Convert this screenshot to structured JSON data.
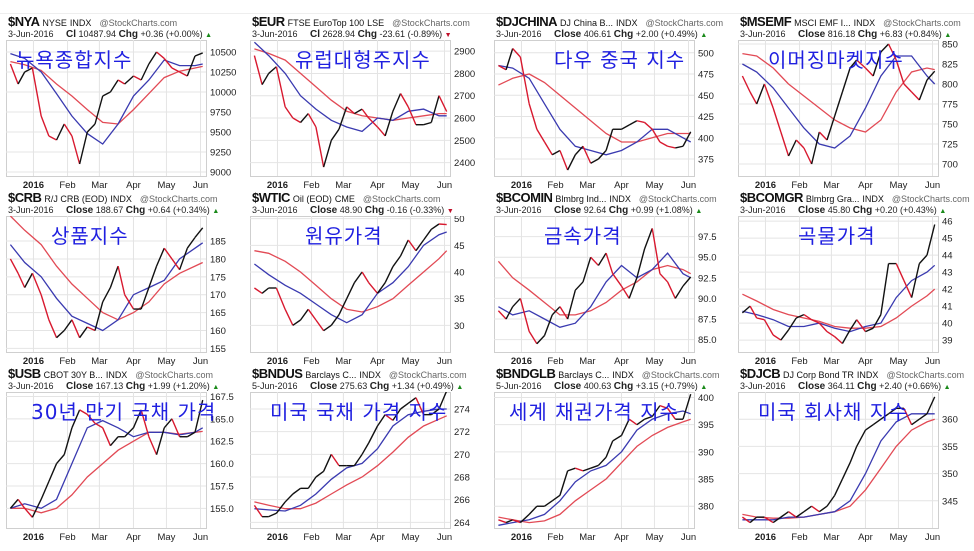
{
  "watermark": "@StockCharts.com",
  "colors": {
    "up": "#111111",
    "down": "#d8192f",
    "ma_short": "#3a3ab0",
    "ma_long": "#e24a55",
    "overlay_text": "#1f1fe0",
    "grid": "#e4e4e4"
  },
  "x_tick_labels": [
    "2016",
    "Feb",
    "Mar",
    "Apr",
    "May",
    "Jun"
  ],
  "chart_data": [
    {
      "type": "line",
      "ticker": "$NYA",
      "name": "NYSE",
      "exchange": "INDX",
      "overlay": "뉴욕종합지수",
      "date": "3-Jun-2016",
      "close_label": "Cl",
      "close": "10487.94",
      "chg_label": "Chg",
      "chg": "+0.36 (+0.00%)",
      "direction": "up",
      "ylim": [
        8950,
        10650
      ],
      "yticks": [
        9000,
        9250,
        9500,
        9750,
        10000,
        10250,
        10500
      ],
      "close_series": [
        10350,
        10100,
        10250,
        10300,
        9700,
        9450,
        9400,
        9600,
        9450,
        9100,
        9500,
        9600,
        9950,
        10000,
        10150,
        10100,
        10200,
        10150,
        10350,
        10500,
        10420,
        10300,
        10250,
        10200,
        10450,
        10488
      ],
      "ma_short": [
        10480,
        10420,
        10250,
        9980,
        9700,
        9480,
        9350,
        9600,
        9950,
        10150,
        10400,
        10330,
        10330,
        10350
      ],
      "ma_long": [
        10380,
        10340,
        10270,
        10100,
        9950,
        9780,
        9620,
        9600,
        9780,
        9980,
        10180,
        10260,
        10300,
        10320
      ]
    },
    {
      "type": "line",
      "ticker": "$EUR",
      "name": "FTSE EuroTop 100",
      "exchange": "LSE",
      "overlay": "유럽대형주지수",
      "date": "3-Jun-2016",
      "close_label": "Cl",
      "close": "2628.94",
      "chg_label": "Chg",
      "chg": "-23.61 (-0.89%)",
      "direction": "down",
      "ylim": [
        2340,
        2950
      ],
      "yticks": [
        2400,
        2500,
        2600,
        2700,
        2800,
        2900
      ],
      "close_series": [
        2880,
        2750,
        2800,
        2830,
        2650,
        2600,
        2580,
        2620,
        2560,
        2380,
        2500,
        2550,
        2650,
        2620,
        2640,
        2600,
        2560,
        2520,
        2630,
        2710,
        2650,
        2570,
        2570,
        2580,
        2700,
        2629
      ],
      "ma_short": [
        2940,
        2880,
        2800,
        2700,
        2640,
        2590,
        2560,
        2540,
        2600,
        2590,
        2630,
        2640,
        2610,
        2610
      ],
      "ma_long": [
        2910,
        2890,
        2860,
        2800,
        2740,
        2680,
        2630,
        2610,
        2600,
        2590,
        2600,
        2610,
        2620,
        2620
      ]
    },
    {
      "type": "line",
      "ticker": "$DJCHINA",
      "name": "DJ China B...",
      "exchange": "INDX",
      "overlay": "다우 중국 지수",
      "date": "3-Jun-2016",
      "close_label": "Close",
      "close": "406.61",
      "chg_label": "Chg",
      "chg": "+2.00 (+0.49%)",
      "direction": "up",
      "ylim": [
        355,
        515
      ],
      "yticks": [
        375,
        400,
        425,
        450,
        475,
        500
      ],
      "close_series": [
        485,
        480,
        505,
        495,
        440,
        410,
        395,
        380,
        385,
        362,
        380,
        390,
        370,
        375,
        385,
        410,
        410,
        415,
        420,
        418,
        410,
        395,
        390,
        388,
        390,
        407
      ],
      "ma_short": [
        485,
        482,
        470,
        440,
        410,
        390,
        385,
        380,
        385,
        395,
        410,
        410,
        400,
        395
      ],
      "ma_long": [
        462,
        470,
        475,
        465,
        450,
        435,
        420,
        405,
        395,
        395,
        400,
        405,
        405,
        405
      ]
    },
    {
      "type": "line",
      "ticker": "$MSEMF",
      "name": "MSCI EMF I...",
      "exchange": "INDX",
      "overlay": "이머징마켓지수",
      "date": "3-Jun-2016",
      "close_label": "Close",
      "close": "816.18",
      "chg_label": "Chg",
      "chg": "+6.83 (+0.84%)",
      "direction": "up",
      "ylim": [
        685,
        855
      ],
      "yticks": [
        700,
        725,
        750,
        775,
        800,
        825,
        850
      ],
      "close_series": [
        810,
        790,
        775,
        800,
        770,
        740,
        710,
        730,
        720,
        700,
        740,
        730,
        760,
        790,
        820,
        830,
        820,
        810,
        840,
        850,
        830,
        800,
        790,
        780,
        805,
        816
      ],
      "ma_short": [
        825,
        815,
        795,
        770,
        745,
        725,
        720,
        735,
        770,
        810,
        835,
        835,
        810,
        800
      ],
      "ma_long": [
        838,
        835,
        820,
        800,
        785,
        770,
        755,
        745,
        740,
        755,
        790,
        815,
        820,
        818
      ]
    },
    {
      "type": "line",
      "ticker": "$CRB",
      "name": "R/J CRB (EOD)",
      "exchange": "INDX",
      "overlay": "상품지수",
      "date": "3-Jun-2016",
      "close_label": "Close",
      "close": "188.67",
      "chg_label": "Chg",
      "chg": "+0.64 (+0.34%)",
      "direction": "up",
      "ylim": [
        154,
        192
      ],
      "yticks": [
        155,
        160,
        165,
        170,
        175,
        180,
        185
      ],
      "close_series": [
        180,
        176,
        172,
        176,
        170,
        163,
        158,
        160,
        163,
        158,
        161,
        160,
        168,
        172,
        178,
        170,
        166,
        166,
        172,
        178,
        183,
        180,
        177,
        183,
        186,
        188.7
      ],
      "ma_short": [
        184,
        179,
        175,
        169,
        164,
        162,
        160,
        163,
        170,
        172,
        174,
        180,
        183,
        184.5
      ],
      "ma_long": [
        192,
        188,
        184,
        178,
        173,
        169,
        165,
        163,
        165,
        168,
        173,
        176,
        178,
        179
      ]
    },
    {
      "type": "line",
      "ticker": "$WTIC",
      "name": "Oil (EOD)",
      "exchange": "CME",
      "overlay": "원유가격",
      "date": "3-Jun-2016",
      "close_label": "Close",
      "close": "48.90",
      "chg_label": "Chg",
      "chg": "-0.16 (-0.33%)",
      "direction": "down",
      "ylim": [
        25,
        50.5
      ],
      "yticks": [
        30,
        35,
        40,
        45,
        50
      ],
      "close_series": [
        37,
        36,
        37,
        37,
        33,
        30,
        31,
        33,
        31,
        29,
        30,
        32,
        35,
        38,
        40,
        38,
        36,
        38,
        41,
        43,
        46,
        44,
        46,
        48,
        49,
        48.9
      ],
      "ma_short": [
        41.5,
        39.5,
        37.5,
        36,
        34,
        32,
        30.5,
        32,
        36,
        38,
        41,
        45,
        47,
        47.5
      ],
      "ma_long": [
        44,
        43.5,
        42,
        40,
        37.5,
        35,
        33,
        32.5,
        33.5,
        35,
        37.5,
        40,
        42.5,
        44
      ]
    },
    {
      "type": "line",
      "ticker": "$BCOMIN",
      "name": "Blmbrg Ind...",
      "exchange": "INDX",
      "overlay": "금속가격",
      "date": "3-Jun-2016",
      "close_label": "Close",
      "close": "92.64",
      "chg_label": "Chg",
      "chg": "+0.99 (+1.08%)",
      "direction": "up",
      "ylim": [
        83.5,
        100
      ],
      "yticks": [
        85.0,
        87.5,
        90.0,
        92.5,
        95.0,
        97.5
      ],
      "close_series": [
        88.5,
        87.5,
        89,
        90,
        86,
        84.5,
        85.5,
        88,
        89,
        87.5,
        91,
        92,
        95,
        94,
        95.5,
        93,
        91.5,
        90,
        92.5,
        96,
        98.5,
        93,
        92,
        90,
        91.5,
        92.6
      ],
      "ma_short": [
        89,
        88,
        88.5,
        87.5,
        86.5,
        87,
        89,
        92,
        94,
        92.5,
        93.5,
        95.5,
        93,
        92.5
      ],
      "ma_long": [
        94.5,
        92.5,
        91,
        89.5,
        88,
        88,
        88.5,
        89.5,
        91,
        92,
        93.5,
        94,
        93.5,
        93
      ]
    },
    {
      "type": "line",
      "ticker": "$BCOMGR",
      "name": "Blmbrg Gra...",
      "exchange": "INDX",
      "overlay": "곡물가격",
      "date": "3-Jun-2016",
      "close_label": "Close",
      "close": "45.80",
      "chg_label": "Chg",
      "chg": "+0.20 (+0.43%)",
      "direction": "up",
      "ylim": [
        38.3,
        46.3
      ],
      "yticks": [
        39,
        40,
        41,
        42,
        43,
        44,
        45,
        46
      ],
      "close_series": [
        40.6,
        41,
        40.3,
        40.2,
        39.3,
        39,
        39.6,
        40.3,
        40.5,
        40.2,
        40,
        39.5,
        39.2,
        38.8,
        39.6,
        40.2,
        39.5,
        39.7,
        40.5,
        43.5,
        43.5,
        42.5,
        41.5,
        43.5,
        44,
        45.8
      ],
      "ma_short": [
        40.7,
        40.5,
        40.2,
        39.8,
        39.8,
        40,
        39.7,
        39.5,
        39.8,
        40,
        41.5,
        42.5,
        43,
        43.4
      ],
      "ma_long": [
        41.7,
        41.3,
        40.8,
        40.5,
        40.3,
        40.1,
        39.8,
        39.7,
        39.7,
        39.8,
        40.3,
        41,
        41.6,
        42
      ]
    },
    {
      "type": "line",
      "ticker": "$USB",
      "name": "CBOT 30Y B...",
      "exchange": "INDX",
      "overlay": "30년 만기 국채 가격",
      "date": "3-Jun-2016",
      "close_label": "Close",
      "close": "167.13",
      "chg_label": "Chg",
      "chg": "+1.99 (+1.20%)",
      "direction": "up",
      "ylim": [
        152.8,
        168
      ],
      "yticks": [
        155.0,
        157.5,
        160.0,
        162.5,
        165.0,
        167.5
      ],
      "close_series": [
        155,
        156,
        155,
        154,
        156,
        158,
        160,
        161,
        164,
        166,
        165.5,
        164.5,
        164,
        162,
        163,
        163,
        164,
        166,
        163,
        161,
        164,
        165,
        163,
        163,
        163.5,
        167.1
      ],
      "ma_short": [
        155,
        155.5,
        155,
        156,
        160,
        164,
        164.8,
        164,
        163,
        163.5,
        163.5,
        163.2,
        163.5,
        164
      ],
      "ma_long": [
        155,
        155,
        154.5,
        155,
        156.5,
        158.5,
        160,
        161.5,
        162.5,
        163.5,
        163.5,
        163.3,
        163.5,
        163.6
      ]
    },
    {
      "type": "line",
      "ticker": "$BNDUS",
      "name": "Barclays C...",
      "exchange": "INDX",
      "overlay": "미국 국채 가격 지수",
      "date": "5-Jun-2016",
      "close_label": "Close",
      "close": "275.63",
      "chg_label": "Chg",
      "chg": "+1.34 (+0.49%)",
      "direction": "up",
      "ylim": [
        263.5,
        275.5
      ],
      "yticks": [
        264,
        266,
        268,
        270,
        272,
        274
      ],
      "close_series": [
        265.5,
        264.5,
        264.5,
        264.8,
        265.8,
        266.5,
        267,
        267,
        268,
        268.5,
        270,
        269,
        269,
        269,
        270,
        271,
        272.5,
        273.5,
        273,
        274,
        274.5,
        275,
        273.5,
        273.5,
        274,
        275.6
      ],
      "ma_short": [
        265.2,
        265.1,
        265,
        265.5,
        266.5,
        267.8,
        268.8,
        269.2,
        270.5,
        272.5,
        273.5,
        273.8,
        274,
        274
      ],
      "ma_long": [
        265.8,
        265.5,
        265.2,
        265.2,
        265.7,
        266.5,
        267.3,
        268,
        269,
        270.2,
        271.5,
        272.5,
        273.1,
        273.4
      ]
    },
    {
      "type": "line",
      "ticker": "$BNDGLB",
      "name": "Barclays C...",
      "exchange": "INDX",
      "overlay": "세계 채권가격 지수",
      "date": "5-Jun-2016",
      "close_label": "Close",
      "close": "400.63",
      "chg_label": "Chg",
      "chg": "+3.15 (+0.79%)",
      "direction": "up",
      "ylim": [
        376,
        401
      ],
      "yticks": [
        380,
        385,
        390,
        395,
        400
      ],
      "close_series": [
        377.5,
        377,
        377.5,
        377,
        378.5,
        380,
        380,
        381,
        382,
        386.5,
        387,
        386.5,
        387,
        387.5,
        389,
        392,
        393,
        396,
        395,
        396,
        396.5,
        398.5,
        398,
        396,
        396,
        400.6
      ],
      "ma_short": [
        376.5,
        377,
        377.5,
        378.5,
        381,
        384.5,
        386.5,
        387.5,
        390,
        394,
        396,
        397,
        397.5,
        397
      ],
      "ma_long": [
        378,
        377.5,
        377,
        377.3,
        378.5,
        381,
        383,
        385,
        388,
        391,
        393,
        394.5,
        395.5,
        396
      ]
    },
    {
      "type": "line",
      "ticker": "$DJCB",
      "name": "DJ Corp Bond TR",
      "exchange": "INDX",
      "overlay": "미국 회사채 지수",
      "date": "3-Jun-2016",
      "close_label": "Close",
      "close": "364.11",
      "chg_label": "Chg",
      "chg": "+2.40 (+0.66%)",
      "direction": "up",
      "ylim": [
        340,
        365
      ],
      "yticks": [
        345,
        350,
        355,
        360
      ],
      "close_series": [
        342,
        341,
        342,
        342,
        341,
        342,
        343,
        342,
        343,
        344,
        343,
        344,
        346,
        349,
        352,
        355,
        358,
        359,
        360,
        361,
        362,
        362,
        359,
        360,
        361,
        364.1
      ],
      "ma_short": [
        341.5,
        341.5,
        341.5,
        342,
        342,
        342.5,
        343,
        345,
        350,
        356,
        359.5,
        361,
        361,
        361
      ],
      "ma_long": [
        342.5,
        342,
        341.8,
        341.8,
        342,
        342.5,
        343,
        344,
        347,
        351,
        355,
        358,
        359.5,
        360
      ]
    }
  ],
  "dates": [
    "2015-12-11",
    "2015-12-18",
    "2015-12-24",
    "2015-12-31",
    "2016-01-08",
    "2016-01-15",
    "2016-01-22",
    "2016-01-29",
    "2016-02-05",
    "2016-02-12",
    "2016-02-19",
    "2016-02-26",
    "2016-03-04",
    "2016-03-11",
    "2016-03-18",
    "2016-03-24",
    "2016-04-01",
    "2016-04-08",
    "2016-04-15",
    "2016-04-22",
    "2016-04-29",
    "2016-05-06",
    "2016-05-13",
    "2016-05-20",
    "2016-05-27",
    "2016-06-03"
  ],
  "ma_dates": [
    "2015-12-11",
    "2015-12-24",
    "2016-01-08",
    "2016-01-22",
    "2016-02-05",
    "2016-02-19",
    "2016-03-04",
    "2016-03-18",
    "2016-04-01",
    "2016-04-15",
    "2016-04-29",
    "2016-05-13",
    "2016-05-27",
    "2016-06-03"
  ]
}
